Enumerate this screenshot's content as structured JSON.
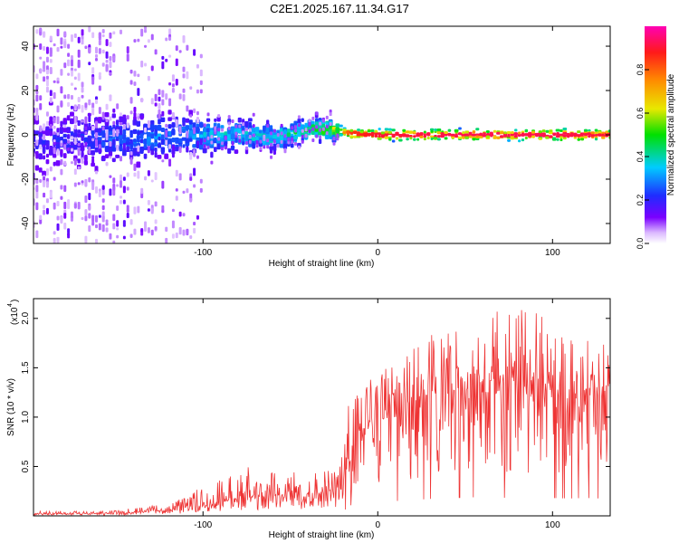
{
  "figure_title": "C2E1.2025.167.11.34.G17",
  "chart_data": [
    {
      "type": "heatmap",
      "title": "C2E1.2025.167.11.34.G17",
      "xlabel": "Height of straight line (km)",
      "ylabel": "Frequency (Hz)",
      "xlim": [
        -197,
        133
      ],
      "ylim": [
        -49,
        49
      ],
      "x_ticks": [
        -100,
        0,
        100
      ],
      "y_ticks": [
        -40,
        -20,
        0,
        20,
        40
      ],
      "x_tick_labels": [
        "-100",
        "0",
        "100"
      ],
      "y_tick_labels": [
        "-40",
        "-20",
        "0",
        "20",
        "40"
      ],
      "colorbar": {
        "label": "Normalized spectral amplitude",
        "range": [
          0,
          1
        ],
        "ticks": [
          0.0,
          0.2,
          0.4,
          0.6,
          0.8
        ],
        "tick_labels": [
          "0.0",
          "0.2",
          "0.4",
          "0.6",
          "0.8"
        ],
        "colormap": "rainbow (purple-blue-cyan-green-yellow-orange-red-magenta)"
      },
      "ridge": {
        "description": "Dominant frequency ridge; scattered broadband noise below about -25 km, a sharp high-amplitude line near 0 Hz above about -20 km",
        "points": [
          {
            "x": -190,
            "freq": -3,
            "amp": 0.2
          },
          {
            "x": -160,
            "freq": -2,
            "amp": 0.25
          },
          {
            "x": -130,
            "freq": -1,
            "amp": 0.3
          },
          {
            "x": -100,
            "freq": 0,
            "amp": 0.35
          },
          {
            "x": -80,
            "freq": 0,
            "amp": 0.38
          },
          {
            "x": -60,
            "freq": -1,
            "amp": 0.4
          },
          {
            "x": -45,
            "freq": 1,
            "amp": 0.45
          },
          {
            "x": -35,
            "freq": 3,
            "amp": 0.5
          },
          {
            "x": -25,
            "freq": 2,
            "amp": 0.6
          },
          {
            "x": -15,
            "freq": 0.5,
            "amp": 0.85
          },
          {
            "x": 0,
            "freq": 0,
            "amp": 0.9
          },
          {
            "x": 50,
            "freq": 0,
            "amp": 0.92
          },
          {
            "x": 100,
            "freq": 0,
            "amp": 0.92
          },
          {
            "x": 133,
            "freq": 0,
            "amp": 0.9
          }
        ]
      }
    },
    {
      "type": "line",
      "xlabel": "Height of straight line (km)",
      "ylabel": "SNR (10 * v/v)",
      "y_scale_label": "(x10",
      "y_scale_exponent": "4",
      "xlim": [
        -197,
        133
      ],
      "ylim": [
        0,
        2.2
      ],
      "x_ticks": [
        -100,
        0,
        100
      ],
      "y_ticks": [
        0.5,
        1.0,
        1.5,
        2.0
      ],
      "x_tick_labels": [
        "-100",
        "0",
        "100"
      ],
      "y_tick_labels": [
        "0.5",
        "1.0",
        "1.5",
        "2.0"
      ],
      "series": [
        {
          "name": "SNR",
          "color": "#ee3333",
          "envelope": {
            "x": [
              -197,
              -160,
              -140,
              -120,
              -105,
              -90,
              -75,
              -60,
              -45,
              -30,
              -22,
              -18,
              -15,
              -10,
              -5,
              0,
              10,
              20,
              30,
              40,
              50,
              60,
              70,
              80,
              90,
              100,
              110,
              120,
              133
            ],
            "mean": [
              0.02,
              0.02,
              0.03,
              0.05,
              0.08,
              0.13,
              0.17,
              0.18,
              0.18,
              0.2,
              0.25,
              0.45,
              0.75,
              0.85,
              0.9,
              0.95,
              1.0,
              1.05,
              1.15,
              1.2,
              1.25,
              1.25,
              1.22,
              1.22,
              1.2,
              1.2,
              1.18,
              1.2,
              1.15
            ],
            "max": [
              0.05,
              0.05,
              0.08,
              0.12,
              0.25,
              0.4,
              0.5,
              0.5,
              0.45,
              0.45,
              0.55,
              1.2,
              1.25,
              1.35,
              1.4,
              1.6,
              1.5,
              1.8,
              1.85,
              1.9,
              2.15,
              2.0,
              2.1,
              2.15,
              2.1,
              1.9,
              2.0,
              1.9,
              1.7
            ]
          }
        }
      ]
    }
  ],
  "colors": {
    "snr_line": "#ee3333",
    "axis": "#000000"
  }
}
